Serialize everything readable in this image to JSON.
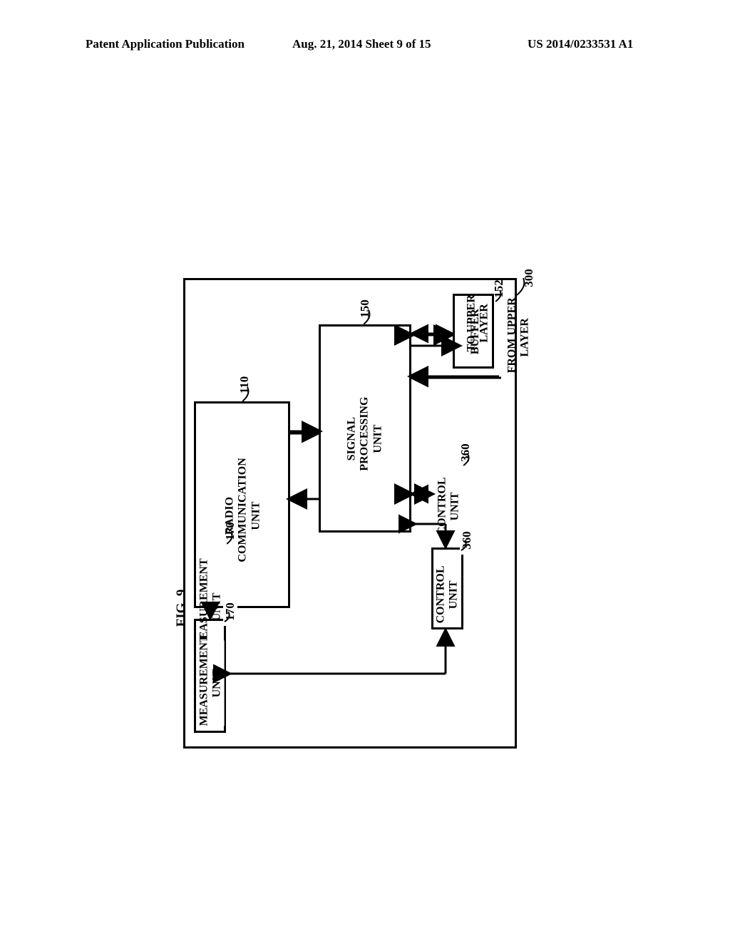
{
  "header": {
    "left": "Patent Application Publication",
    "center": "Aug. 21, 2014  Sheet 9 of 15",
    "right": "US 2014/0233531 A1"
  },
  "figure": {
    "label": "FIG. 9",
    "outer_ref": "300",
    "blocks": {
      "radio": {
        "text": "RADIO\nCOMMUNICATION\nUNIT",
        "ref": "110"
      },
      "signal": {
        "text": "SIGNAL\nPROCESSING\nUNIT",
        "ref": "150"
      },
      "buffer": {
        "text": "BUFFER",
        "ref": "152"
      },
      "measurement": {
        "text": "MEASUREMENT\nUNIT",
        "ref": "170"
      },
      "control": {
        "text": "CONTROL\nUNIT",
        "ref": "360"
      }
    },
    "io": {
      "to_upper": "TO UPPER\nLAYER",
      "from_upper": "FROM UPPER\nLAYER"
    }
  },
  "style": {
    "line_width": 3,
    "arrow_head": 10,
    "font_family": "Times New Roman",
    "bg": "#ffffff",
    "fg": "#000000"
  }
}
